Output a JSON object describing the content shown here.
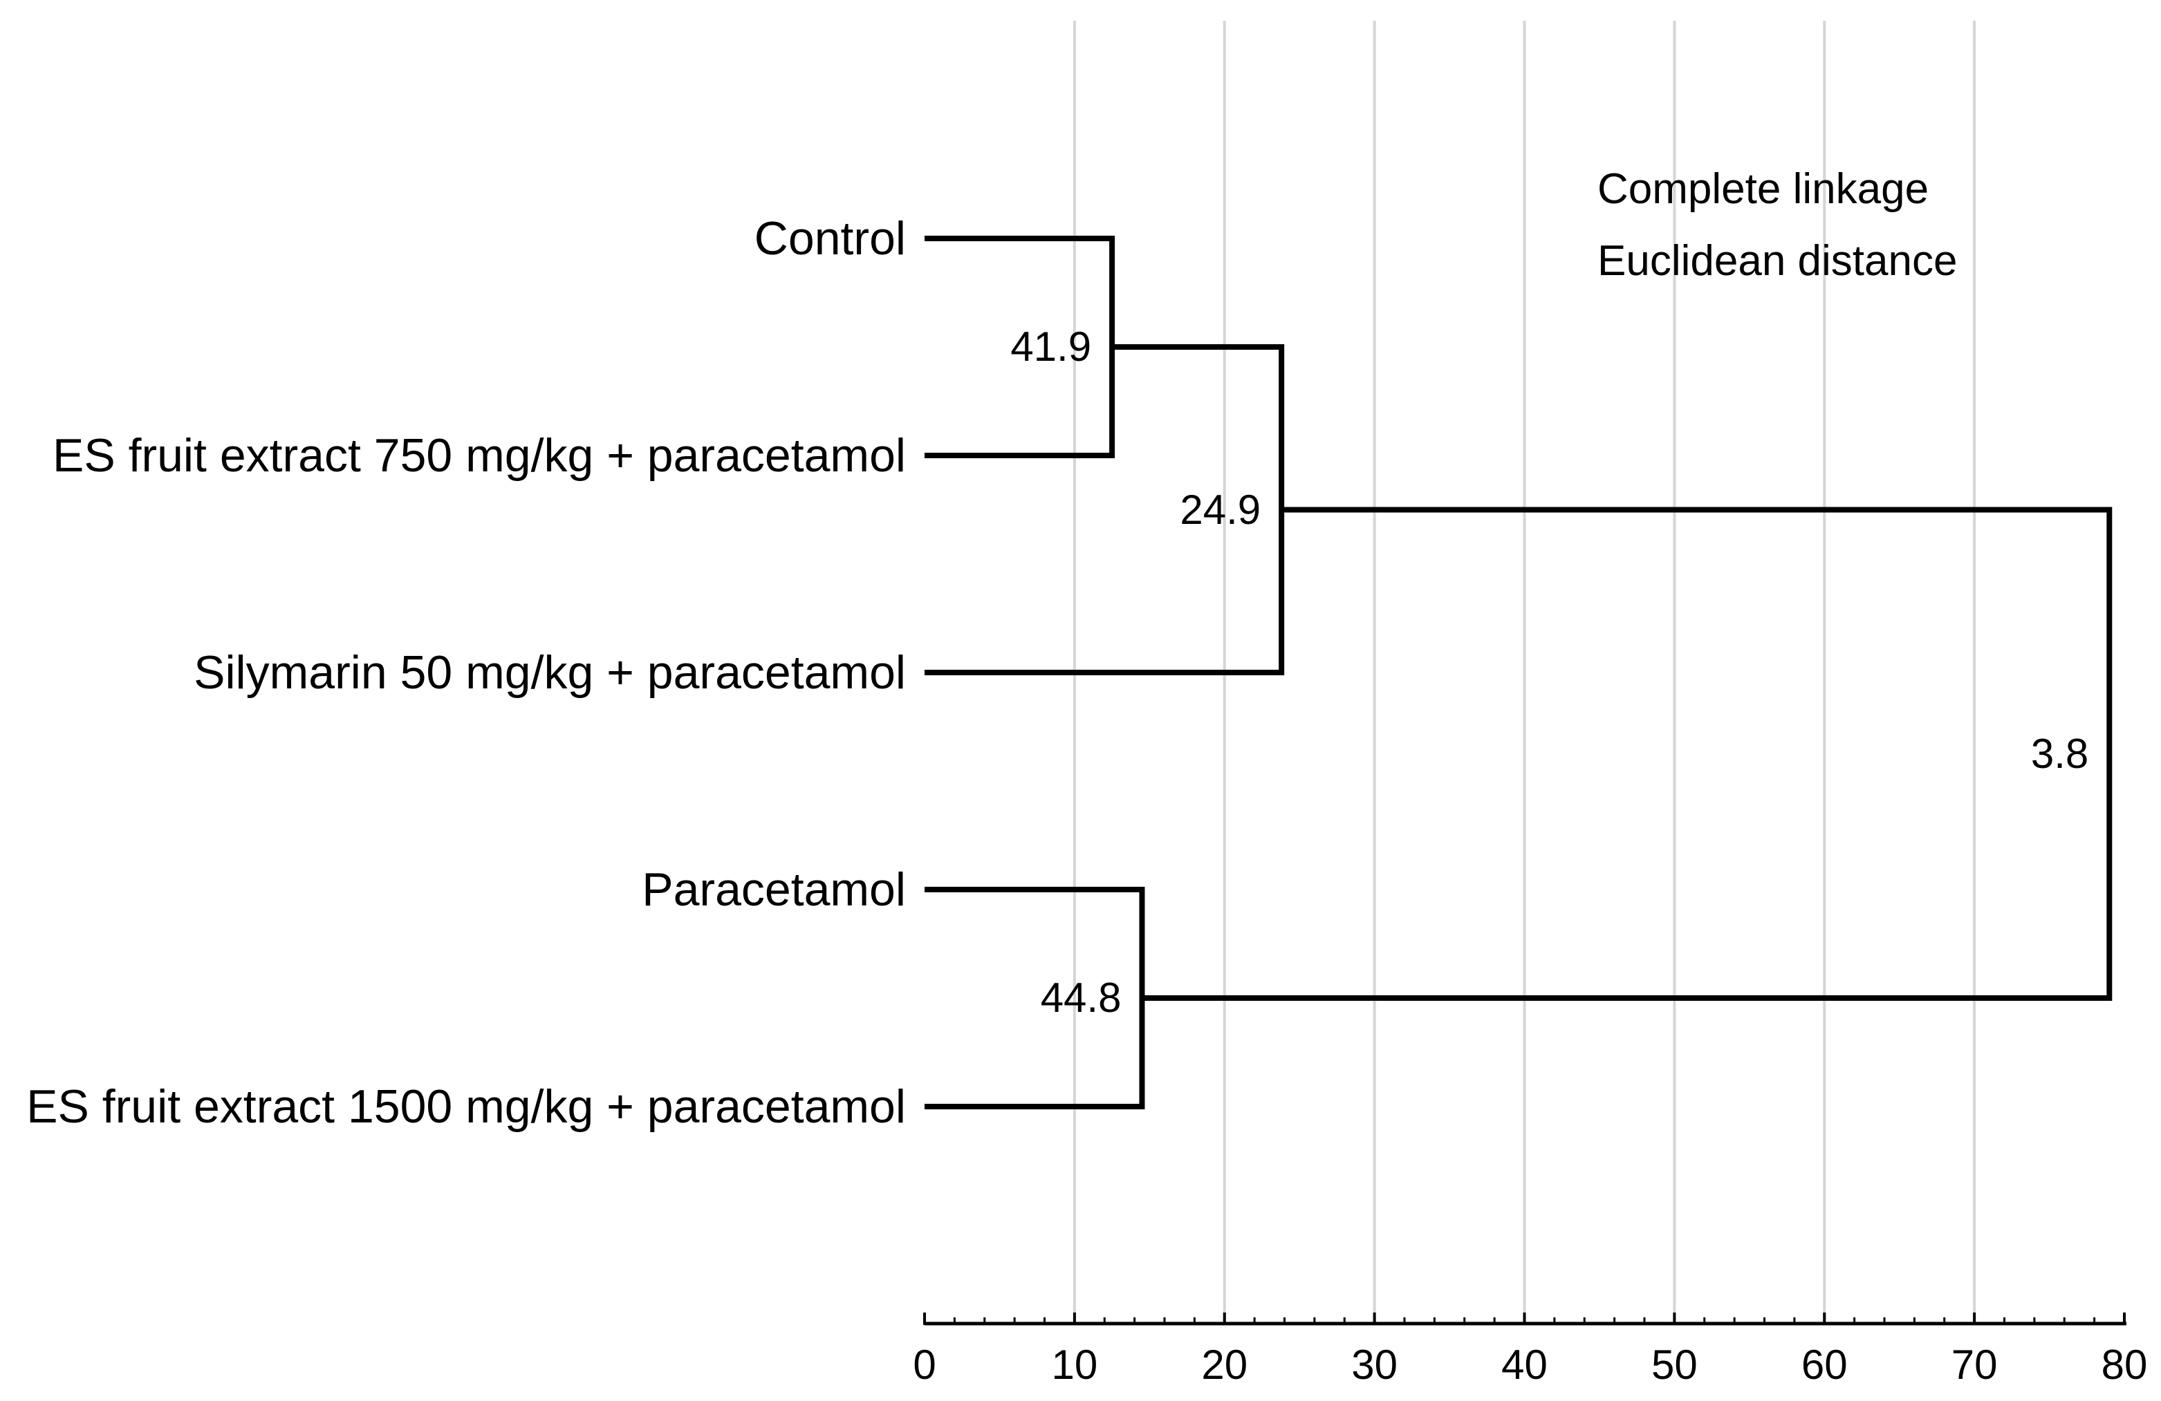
{
  "chart_data": {
    "type": "dendrogram",
    "orientation": "horizontal",
    "title": "",
    "annotation": [
      "Complete linkage",
      "Euclidean distance"
    ],
    "x_axis": {
      "min": 0,
      "max": 80,
      "major_tick_step": 10,
      "minor_tick_step": 2,
      "tick_labels": [
        "0",
        "10",
        "20",
        "30",
        "40",
        "50",
        "60",
        "70",
        "80"
      ],
      "gridlines_at": [
        10,
        20,
        30,
        40,
        50,
        60,
        70
      ],
      "gridline_color": "#d5d5d5",
      "axis_color": "#000000"
    },
    "leaves": [
      "Control",
      "ES fruit extract 750 mg/kg + paracetamol",
      "Silymarin 50 mg/kg + paracetamol",
      "Paracetamol",
      "ES fruit extract 1500 mg/kg + paracetamol"
    ],
    "merges": [
      {
        "label": "41.9",
        "axis_distance": 12.5,
        "children": [
          {
            "type": "leaf",
            "index": 0
          },
          {
            "type": "leaf",
            "index": 1
          }
        ]
      },
      {
        "label": "24.9",
        "axis_distance": 23.8,
        "children": [
          {
            "type": "merge",
            "index": 0
          },
          {
            "type": "leaf",
            "index": 2
          }
        ]
      },
      {
        "label": "44.8",
        "axis_distance": 14.5,
        "children": [
          {
            "type": "leaf",
            "index": 3
          },
          {
            "type": "leaf",
            "index": 4
          }
        ]
      },
      {
        "label": "3.8",
        "axis_distance": 79.0,
        "children": [
          {
            "type": "merge",
            "index": 1
          },
          {
            "type": "merge",
            "index": 2
          }
        ]
      }
    ],
    "line_color": "#000000"
  }
}
